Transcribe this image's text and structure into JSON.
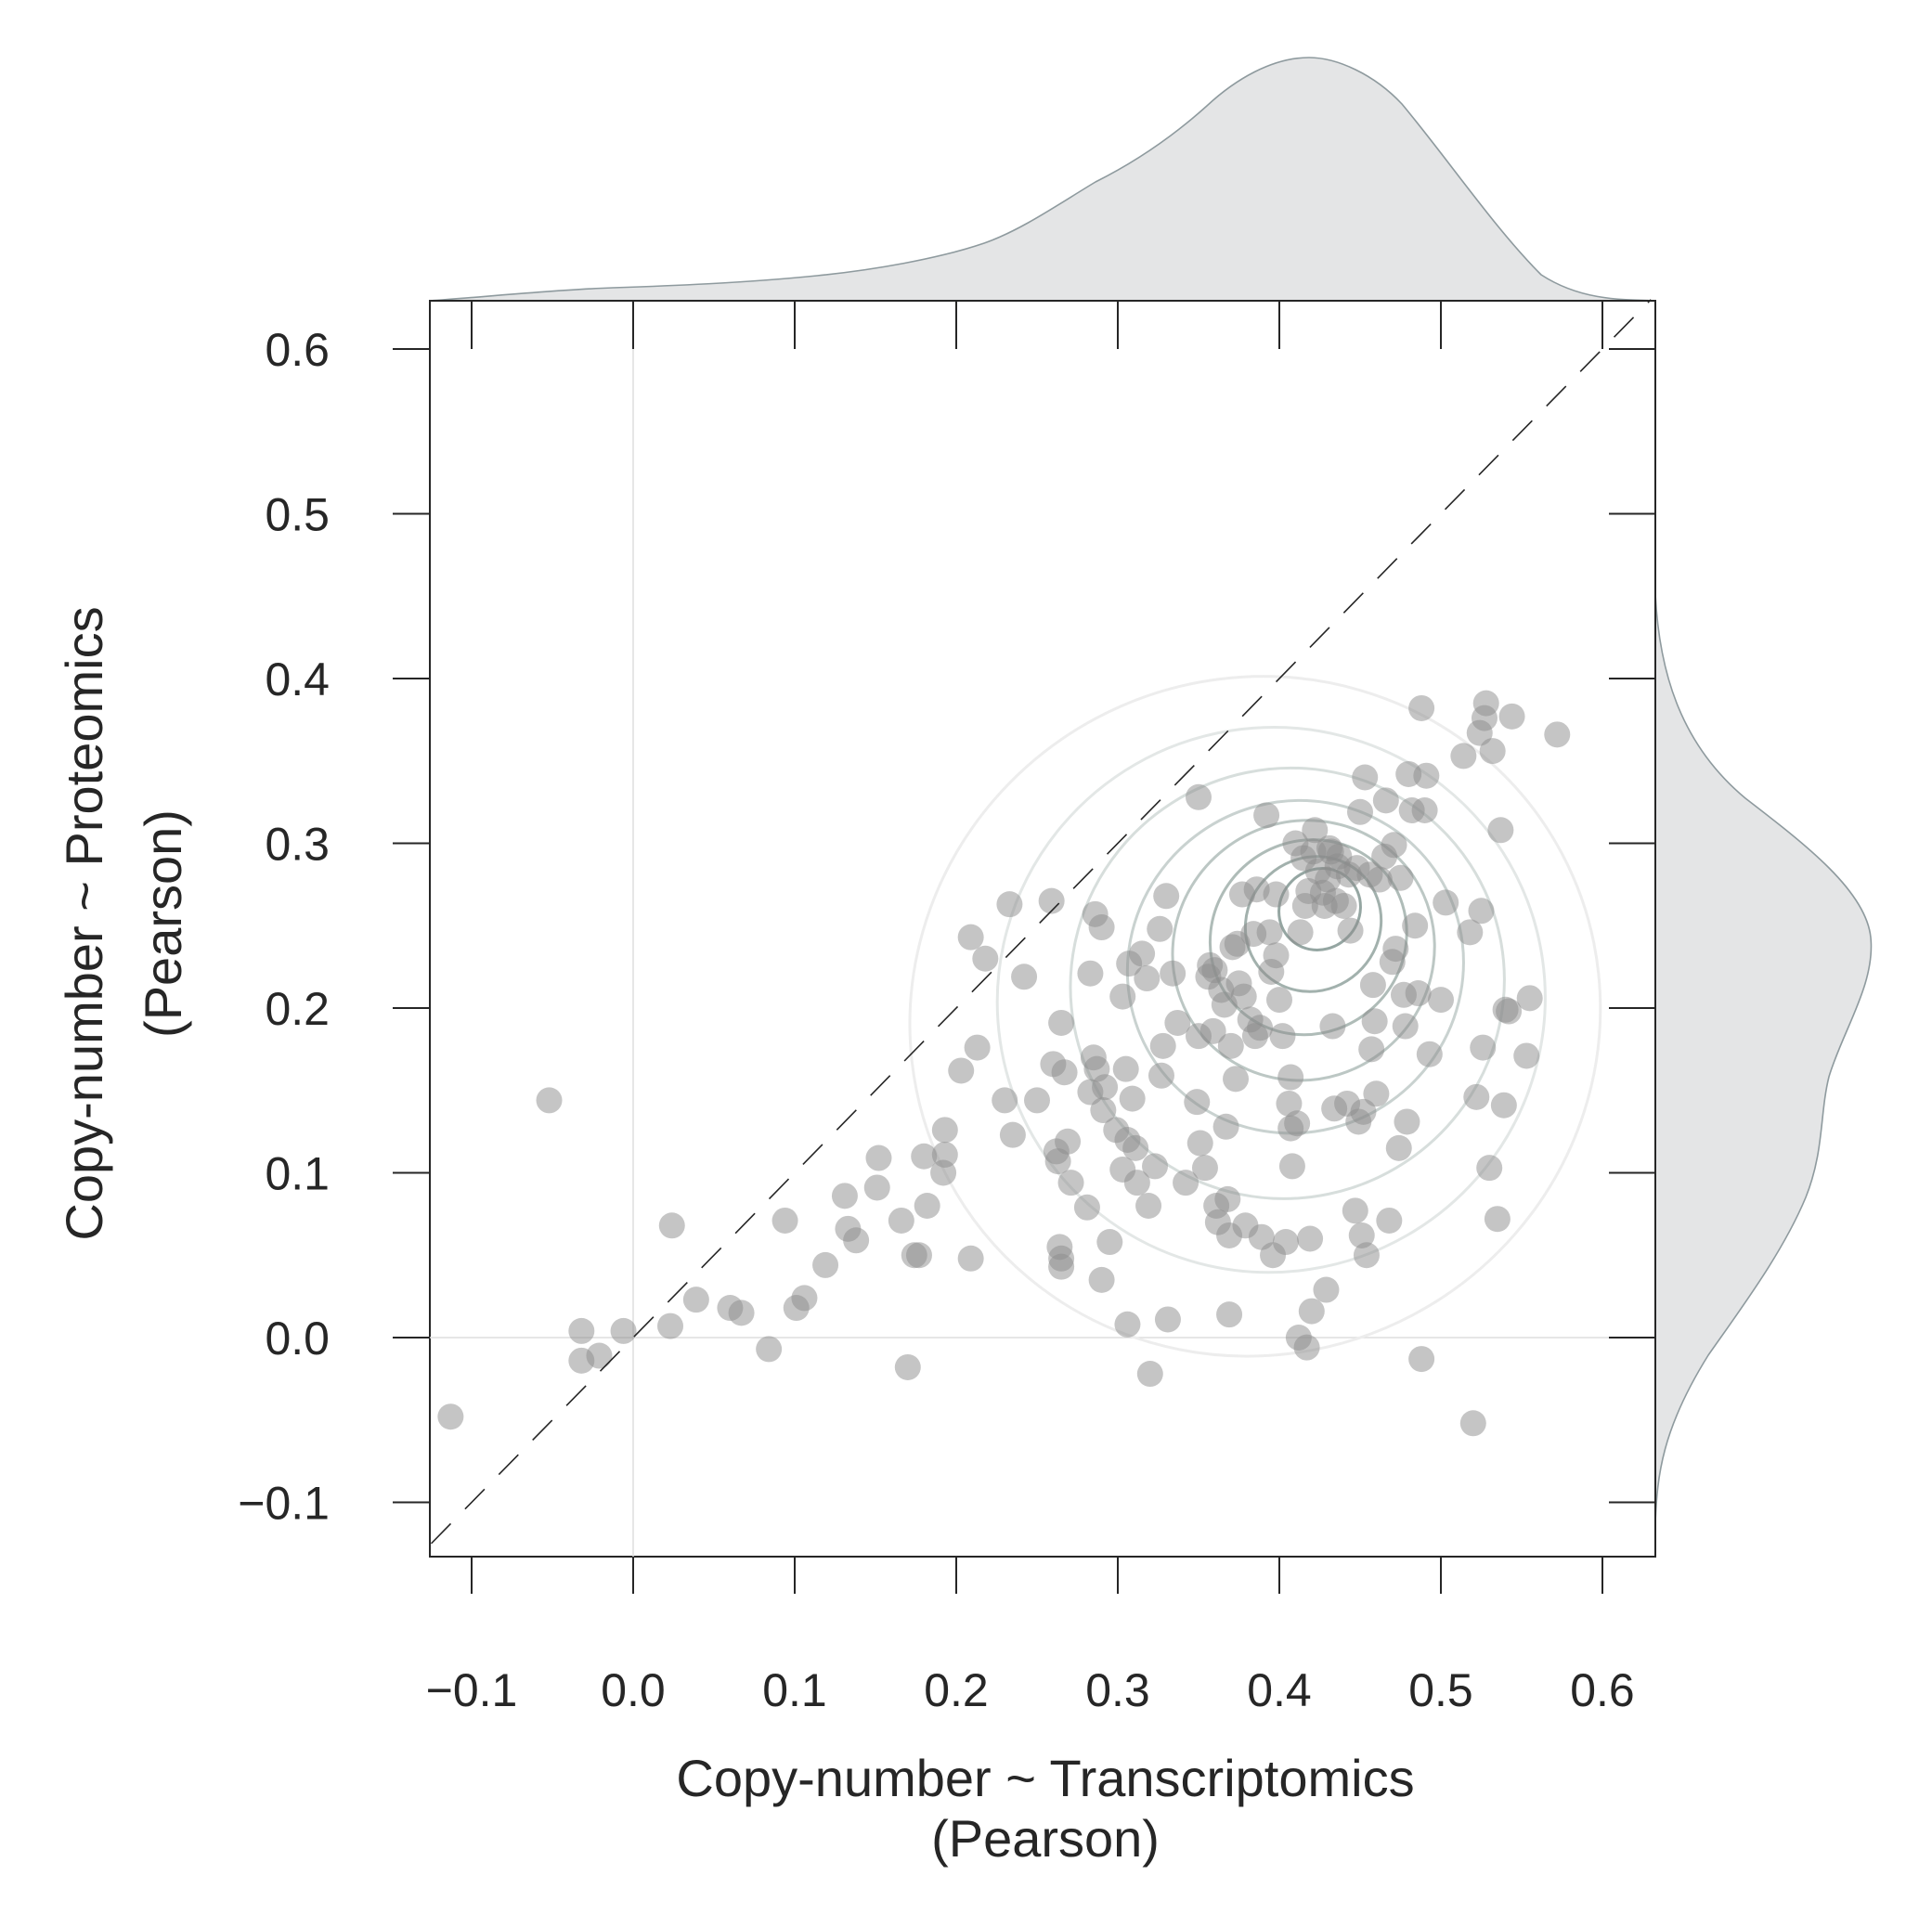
{
  "chart_data": {
    "type": "scatter",
    "title": "",
    "xlabel": [
      "Copy-number ~ Transcriptomics",
      "(Pearson)"
    ],
    "ylabel": [
      "Copy-number ~ Proteomics",
      "(Pearson)"
    ],
    "xlim": [
      -0.125,
      0.63
    ],
    "ylim": [
      -0.125,
      0.63
    ],
    "xticks": [
      -0.1,
      0.0,
      0.1,
      0.2,
      0.3,
      0.4,
      0.5,
      0.6
    ],
    "yticks": [
      -0.1,
      0.0,
      0.1,
      0.2,
      0.3,
      0.4,
      0.5,
      0.6
    ],
    "xtick_labels": [
      "−0.1",
      "0.0",
      "0.1",
      "0.2",
      "0.3",
      "0.4",
      "0.5",
      "0.6"
    ],
    "ytick_labels": [
      "−0.1",
      "0.0",
      "0.1",
      "0.2",
      "0.3",
      "0.4",
      "0.5",
      "0.6"
    ],
    "reference_lines": {
      "diagonal": "y = x (dashed)",
      "zero_x": 0.0,
      "zero_y": 0.0
    },
    "grid": false,
    "marginal_distributions": "kde (top: x, right: y)",
    "density_contours": true,
    "colors": {
      "points": "#a8a8a8",
      "marginal_fill": "#e4e5e6",
      "marginal_line": "#8e9a9e",
      "contour": "#8fa09c",
      "axes": "#262626"
    },
    "points": [
      [
        -0.113,
        -0.048
      ],
      [
        -0.052,
        0.144
      ],
      [
        -0.032,
        0.004
      ],
      [
        -0.032,
        -0.014
      ],
      [
        -0.021,
        -0.011
      ],
      [
        -0.006,
        0.004
      ],
      [
        0.023,
        0.007
      ],
      [
        0.024,
        0.068
      ],
      [
        0.039,
        0.023
      ],
      [
        0.06,
        0.018
      ],
      [
        0.067,
        0.015
      ],
      [
        0.084,
        -0.007
      ],
      [
        0.094,
        0.071
      ],
      [
        0.101,
        0.018
      ],
      [
        0.106,
        0.024
      ],
      [
        0.119,
        0.044
      ],
      [
        0.131,
        0.086
      ],
      [
        0.133,
        0.066
      ],
      [
        0.138,
        0.059
      ],
      [
        0.151,
        0.091
      ],
      [
        0.152,
        0.109
      ],
      [
        0.166,
        0.071
      ],
      [
        0.17,
        -0.018
      ],
      [
        0.174,
        0.05
      ],
      [
        0.177,
        0.05
      ],
      [
        0.18,
        0.11
      ],
      [
        0.182,
        0.08
      ],
      [
        0.192,
        0.1
      ],
      [
        0.193,
        0.111
      ],
      [
        0.193,
        0.126
      ],
      [
        0.203,
        0.162
      ],
      [
        0.209,
        0.243
      ],
      [
        0.209,
        0.048
      ],
      [
        0.213,
        0.176
      ],
      [
        0.218,
        0.23
      ],
      [
        0.23,
        0.144
      ],
      [
        0.233,
        0.263
      ],
      [
        0.235,
        0.123
      ],
      [
        0.242,
        0.219
      ],
      [
        0.25,
        0.144
      ],
      [
        0.259,
        0.265
      ],
      [
        0.26,
        0.166
      ],
      [
        0.262,
        0.113
      ],
      [
        0.265,
        0.191
      ],
      [
        0.263,
        0.107
      ],
      [
        0.264,
        0.055
      ],
      [
        0.265,
        0.048
      ],
      [
        0.265,
        0.043
      ],
      [
        0.267,
        0.161
      ],
      [
        0.269,
        0.119
      ],
      [
        0.271,
        0.094
      ],
      [
        0.281,
        0.079
      ],
      [
        0.283,
        0.149
      ],
      [
        0.283,
        0.221
      ],
      [
        0.285,
        0.17
      ],
      [
        0.286,
        0.257
      ],
      [
        0.287,
        0.163
      ],
      [
        0.29,
        0.249
      ],
      [
        0.29,
        0.035
      ],
      [
        0.291,
        0.138
      ],
      [
        0.292,
        0.152
      ],
      [
        0.295,
        0.058
      ],
      [
        0.299,
        0.126
      ],
      [
        0.303,
        0.207
      ],
      [
        0.303,
        0.102
      ],
      [
        0.305,
        0.163
      ],
      [
        0.306,
        0.12
      ],
      [
        0.306,
        0.008
      ],
      [
        0.307,
        0.227
      ],
      [
        0.309,
        0.145
      ],
      [
        0.311,
        0.115
      ],
      [
        0.312,
        0.094
      ],
      [
        0.315,
        0.233
      ],
      [
        0.318,
        0.218
      ],
      [
        0.319,
        0.08
      ],
      [
        0.32,
        -0.022
      ],
      [
        0.323,
        0.104
      ],
      [
        0.326,
        0.248
      ],
      [
        0.327,
        0.159
      ],
      [
        0.328,
        0.177
      ],
      [
        0.33,
        0.268
      ],
      [
        0.331,
        0.011
      ],
      [
        0.334,
        0.221
      ],
      [
        0.337,
        0.191
      ],
      [
        0.342,
        0.094
      ],
      [
        0.349,
        0.143
      ],
      [
        0.35,
        0.328
      ],
      [
        0.35,
        0.183
      ],
      [
        0.351,
        0.118
      ],
      [
        0.354,
        0.103
      ],
      [
        0.356,
        0.219
      ],
      [
        0.357,
        0.226
      ],
      [
        0.359,
        0.186
      ],
      [
        0.36,
        0.223
      ],
      [
        0.361,
        0.08
      ],
      [
        0.362,
        0.07
      ],
      [
        0.364,
        0.211
      ],
      [
        0.366,
        0.202
      ],
      [
        0.367,
        0.128
      ],
      [
        0.368,
        0.084
      ],
      [
        0.369,
        0.062
      ],
      [
        0.369,
        0.014
      ],
      [
        0.37,
        0.177
      ],
      [
        0.371,
        0.237
      ],
      [
        0.373,
        0.157
      ],
      [
        0.374,
        0.239
      ],
      [
        0.375,
        0.215
      ],
      [
        0.377,
        0.269
      ],
      [
        0.378,
        0.207
      ],
      [
        0.379,
        0.068
      ],
      [
        0.382,
        0.193
      ],
      [
        0.384,
        0.245
      ],
      [
        0.385,
        0.183
      ],
      [
        0.386,
        0.272
      ],
      [
        0.388,
        0.188
      ],
      [
        0.389,
        0.061
      ],
      [
        0.392,
        0.317
      ],
      [
        0.394,
        0.246
      ],
      [
        0.395,
        0.222
      ],
      [
        0.396,
        0.05
      ],
      [
        0.398,
        0.269
      ],
      [
        0.398,
        0.232
      ],
      [
        0.4,
        0.205
      ],
      [
        0.402,
        0.183
      ],
      [
        0.404,
        0.058
      ],
      [
        0.406,
        0.142
      ],
      [
        0.407,
        0.158
      ],
      [
        0.407,
        0.127
      ],
      [
        0.408,
        0.104
      ],
      [
        0.41,
        0.3
      ],
      [
        0.411,
        0.13
      ],
      [
        0.412,
        0.0
      ],
      [
        0.413,
        0.246
      ],
      [
        0.415,
        0.291
      ],
      [
        0.416,
        0.262
      ],
      [
        0.417,
        -0.006
      ],
      [
        0.418,
        0.271
      ],
      [
        0.419,
        0.06
      ],
      [
        0.42,
        0.016
      ],
      [
        0.421,
        0.295
      ],
      [
        0.422,
        0.308
      ],
      [
        0.424,
        0.283
      ],
      [
        0.427,
        0.27
      ],
      [
        0.428,
        0.262
      ],
      [
        0.429,
        0.029
      ],
      [
        0.43,
        0.278
      ],
      [
        0.431,
        0.297
      ],
      [
        0.432,
        0.295
      ],
      [
        0.433,
        0.189
      ],
      [
        0.434,
        0.139
      ],
      [
        0.435,
        0.265
      ],
      [
        0.436,
        0.286
      ],
      [
        0.437,
        0.292
      ],
      [
        0.44,
        0.262
      ],
      [
        0.442,
        0.142
      ],
      [
        0.443,
        0.281
      ],
      [
        0.444,
        0.247
      ],
      [
        0.447,
        0.077
      ],
      [
        0.448,
        0.285
      ],
      [
        0.449,
        0.131
      ],
      [
        0.45,
        0.319
      ],
      [
        0.451,
        0.062
      ],
      [
        0.452,
        0.137
      ],
      [
        0.453,
        0.34
      ],
      [
        0.454,
        0.05
      ],
      [
        0.456,
        0.281
      ],
      [
        0.457,
        0.175
      ],
      [
        0.458,
        0.214
      ],
      [
        0.459,
        0.192
      ],
      [
        0.46,
        0.148
      ],
      [
        0.462,
        0.278
      ],
      [
        0.465,
        0.292
      ],
      [
        0.466,
        0.326
      ],
      [
        0.468,
        0.071
      ],
      [
        0.47,
        0.228
      ],
      [
        0.471,
        0.299
      ],
      [
        0.472,
        0.236
      ],
      [
        0.474,
        0.115
      ],
      [
        0.475,
        0.279
      ],
      [
        0.477,
        0.208
      ],
      [
        0.478,
        0.189
      ],
      [
        0.479,
        0.131
      ],
      [
        0.48,
        0.342
      ],
      [
        0.482,
        0.32
      ],
      [
        0.484,
        0.25
      ],
      [
        0.486,
        0.209
      ],
      [
        0.488,
        0.382
      ],
      [
        0.488,
        -0.013
      ],
      [
        0.49,
        0.32
      ],
      [
        0.491,
        0.341
      ],
      [
        0.493,
        0.172
      ],
      [
        0.5,
        0.205
      ],
      [
        0.503,
        0.264
      ],
      [
        0.514,
        0.353
      ],
      [
        0.518,
        0.246
      ],
      [
        0.52,
        -0.052
      ],
      [
        0.522,
        0.146
      ],
      [
        0.524,
        0.367
      ],
      [
        0.525,
        0.259
      ],
      [
        0.526,
        0.176
      ],
      [
        0.527,
        0.376
      ],
      [
        0.528,
        0.385
      ],
      [
        0.53,
        0.103
      ],
      [
        0.532,
        0.356
      ],
      [
        0.535,
        0.072
      ],
      [
        0.537,
        0.308
      ],
      [
        0.539,
        0.141
      ],
      [
        0.54,
        0.199
      ],
      [
        0.542,
        0.198
      ],
      [
        0.544,
        0.377
      ],
      [
        0.553,
        0.171
      ],
      [
        0.555,
        0.206
      ],
      [
        0.572,
        0.366
      ]
    ]
  }
}
